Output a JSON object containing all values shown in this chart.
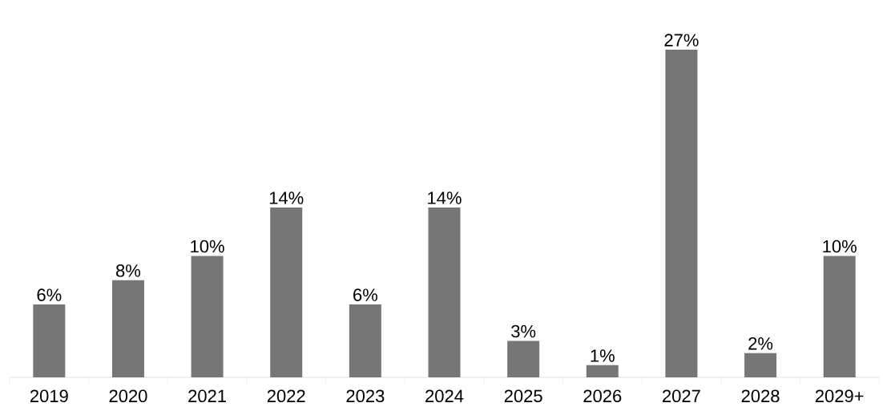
{
  "chart_data": {
    "type": "bar",
    "categories": [
      "2019",
      "2020",
      "2021",
      "2022",
      "2023",
      "2024",
      "2025",
      "2026",
      "2027",
      "2028",
      "2029+"
    ],
    "values": [
      6,
      8,
      10,
      14,
      6,
      14,
      3,
      1,
      27,
      2,
      10
    ],
    "value_labels": [
      "6%",
      "8%",
      "10%",
      "14%",
      "6%",
      "14%",
      "3%",
      "1%",
      "27%",
      "2%",
      "10%"
    ],
    "color": "#767676"
  }
}
